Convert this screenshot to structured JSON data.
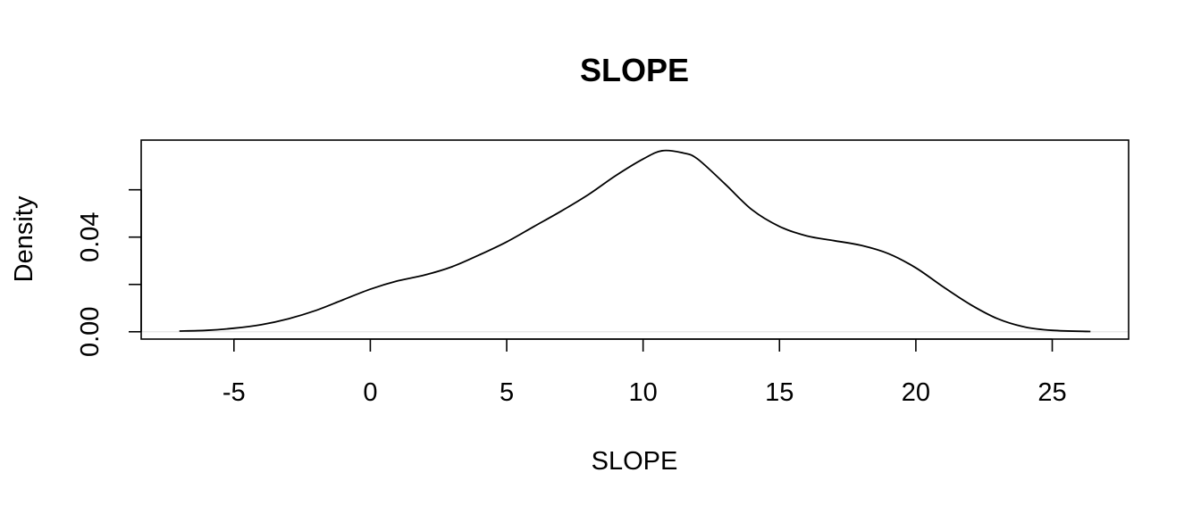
{
  "chart_data": {
    "type": "line",
    "title": "SLOPE",
    "xlabel": "SLOPE",
    "ylabel": "Density",
    "xlim": [
      -8.4,
      27.8
    ],
    "ylim": [
      -0.0031,
      0.081
    ],
    "x_ticks": [
      -5,
      0,
      5,
      10,
      15,
      20,
      25
    ],
    "x_tick_labels": [
      "-5",
      "0",
      "5",
      "10",
      "15",
      "20",
      "25"
    ],
    "y_ticks": [
      0.0,
      0.02,
      0.04,
      0.06
    ],
    "y_tick_labels": [
      "0.00",
      "",
      "0.04",
      ""
    ],
    "grid": false,
    "series": [
      {
        "color": "#000000",
        "x": [
          -7.0,
          -6.0,
          -5.0,
          -4.0,
          -3.0,
          -2.0,
          -1.0,
          0.0,
          1.0,
          2.0,
          3.0,
          4.0,
          5.0,
          6.0,
          7.0,
          8.0,
          9.0,
          10.0,
          10.7,
          11.5,
          12.0,
          13.0,
          14.0,
          15.0,
          16.0,
          17.0,
          18.0,
          19.0,
          20.0,
          21.0,
          22.0,
          23.0,
          24.0,
          25.0,
          26.4
        ],
        "y": [
          0.0003,
          0.0006,
          0.0015,
          0.003,
          0.0055,
          0.009,
          0.0135,
          0.018,
          0.0215,
          0.024,
          0.0275,
          0.0325,
          0.038,
          0.0445,
          0.051,
          0.058,
          0.066,
          0.073,
          0.0765,
          0.0755,
          0.073,
          0.0625,
          0.0515,
          0.0445,
          0.0405,
          0.0385,
          0.0365,
          0.033,
          0.027,
          0.019,
          0.0115,
          0.0055,
          0.002,
          0.0006,
          0.0001
        ]
      }
    ]
  }
}
